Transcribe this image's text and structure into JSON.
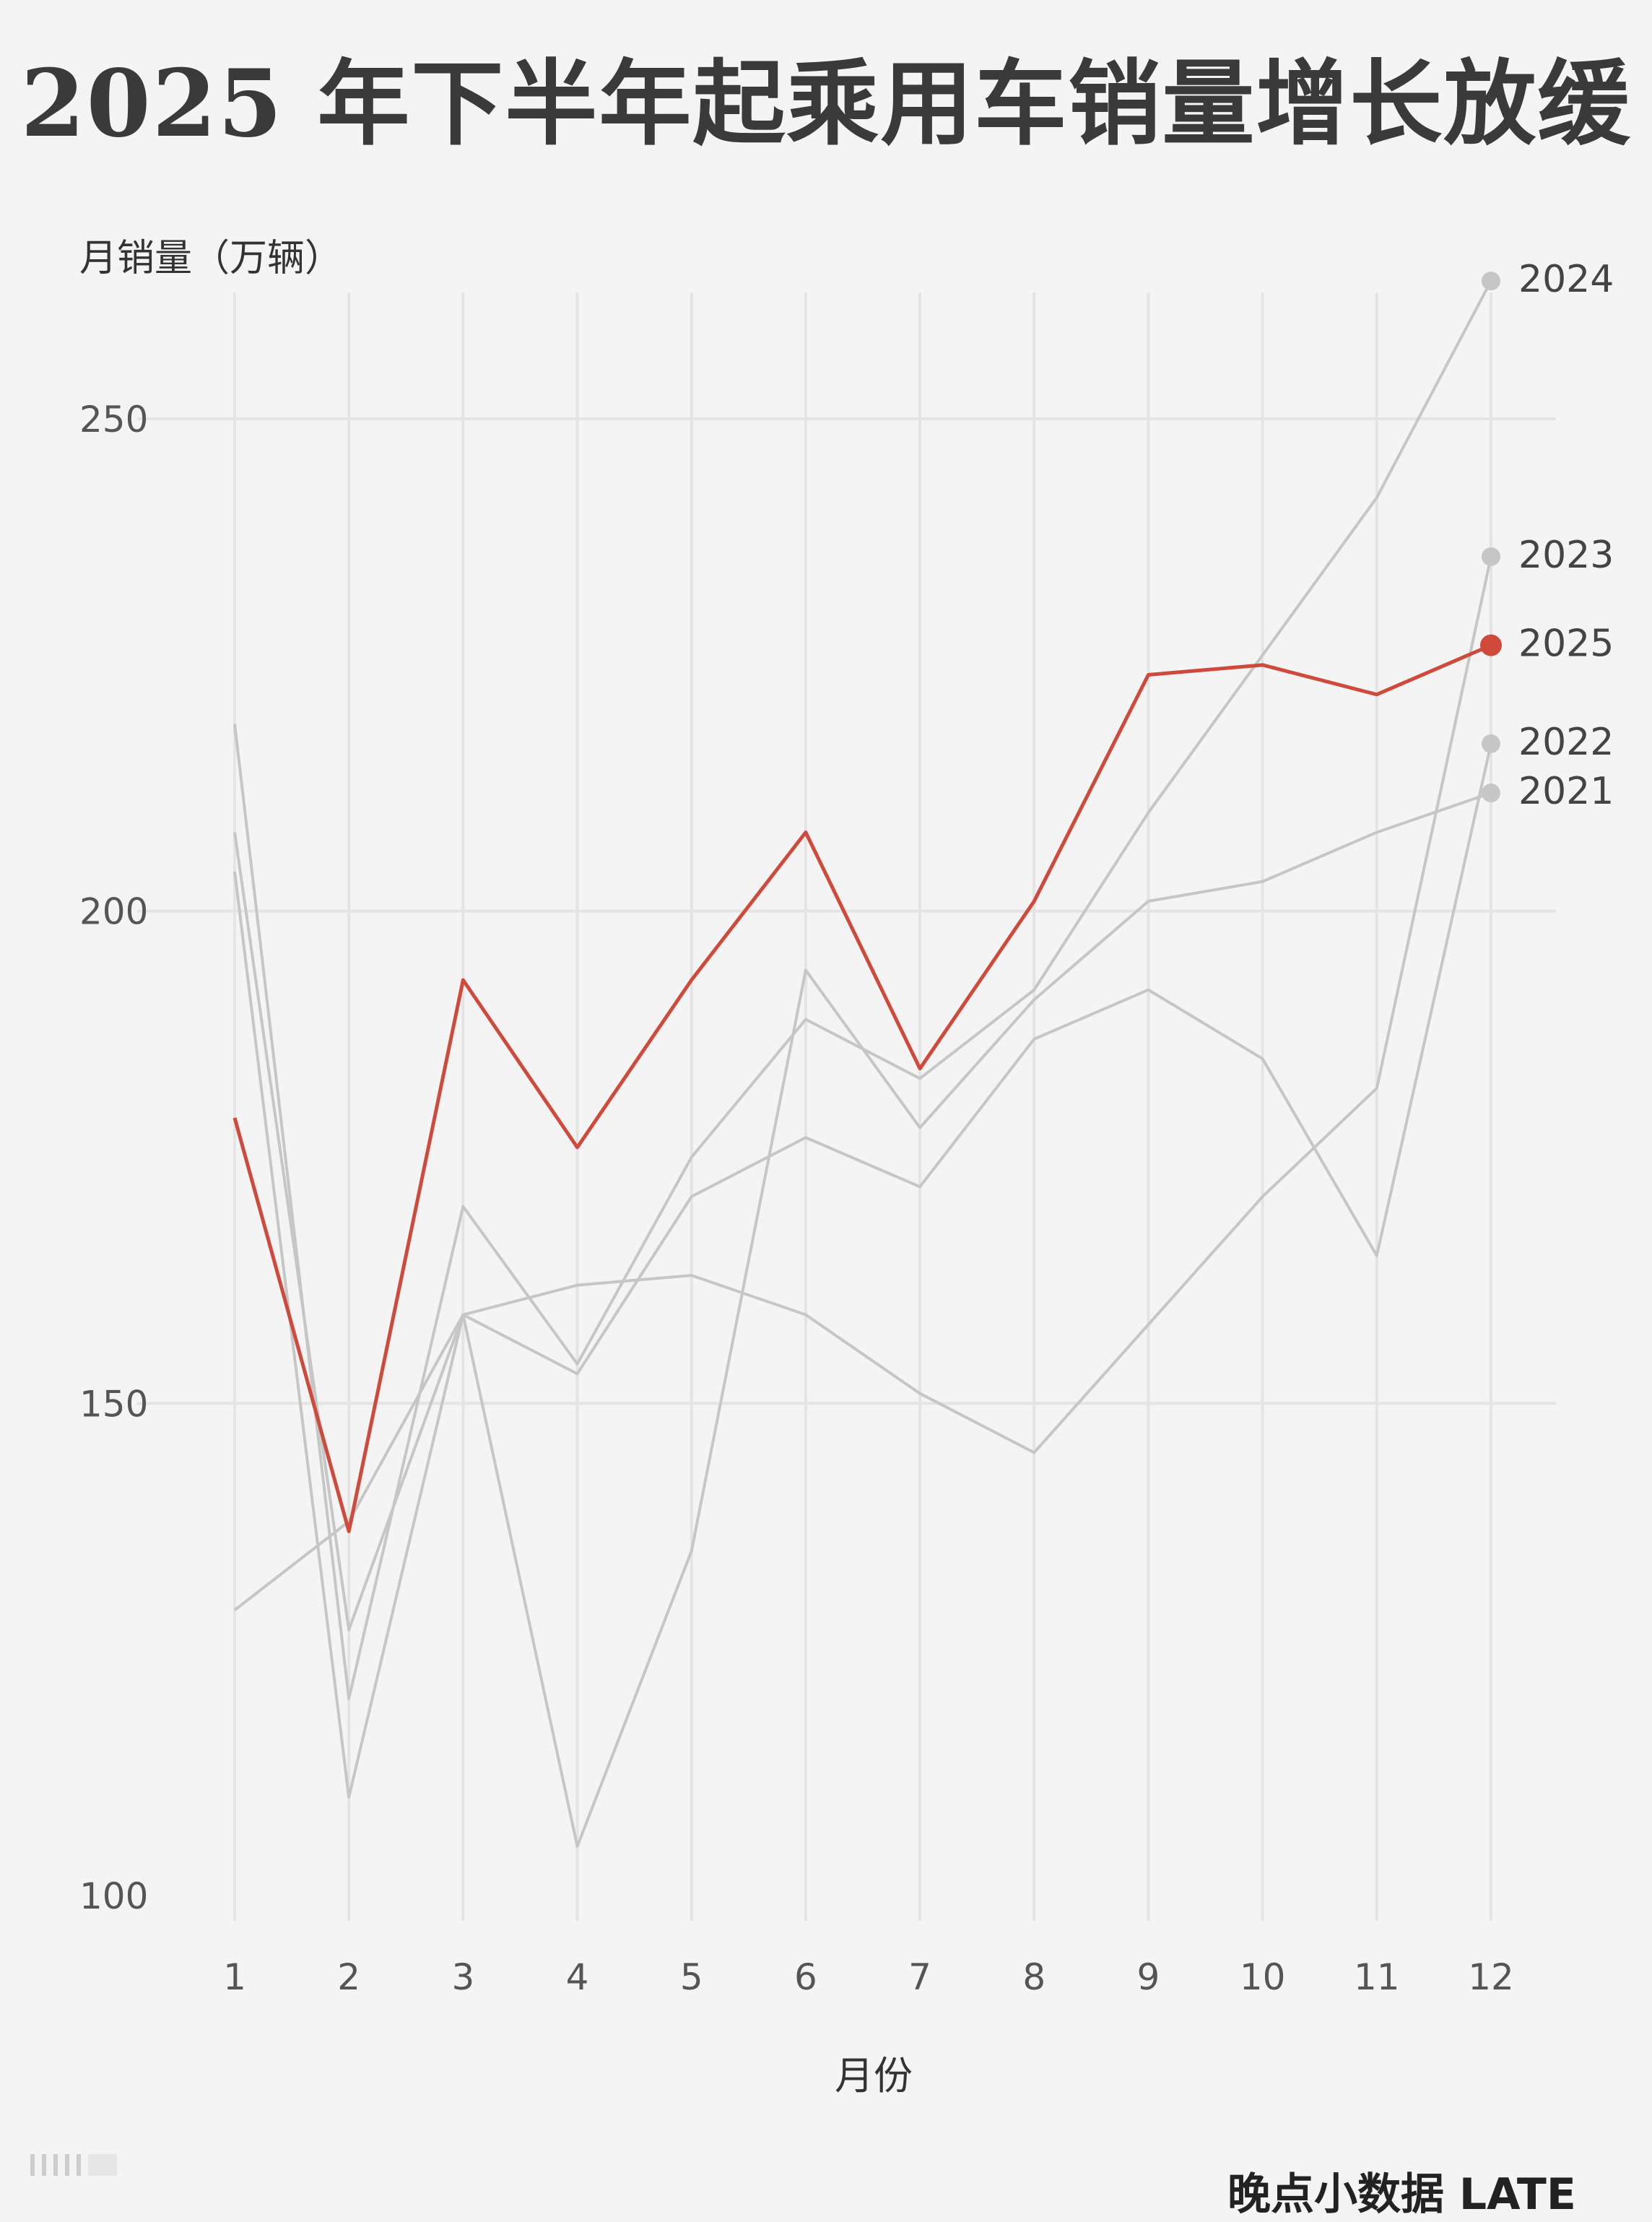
{
  "chart_data": {
    "type": "line",
    "title": "2025 年下半年起乘用车销量增长放缓",
    "ylabel": "月销量（万辆）",
    "xlabel": "月份",
    "x": [
      1,
      2,
      3,
      4,
      5,
      6,
      7,
      8,
      9,
      10,
      11,
      12
    ],
    "ylim": [
      100,
      260
    ],
    "yticks": [
      100,
      150,
      200,
      250
    ],
    "grid": true,
    "series": [
      {
        "name": "2021",
        "values": [
          204,
          110,
          159,
          105,
          135,
          194,
          178,
          191,
          201,
          203,
          208,
          212
        ],
        "color": "#c6c6c6"
      },
      {
        "name": "2022",
        "values": [
          208,
          127,
          159,
          153,
          171,
          177,
          172,
          187,
          192,
          185,
          165,
          217
        ],
        "color": "#c6c6c6"
      },
      {
        "name": "2023",
        "values": [
          129,
          138,
          159,
          162,
          163,
          159,
          151,
          145,
          158,
          171,
          182,
          236
        ],
        "color": "#c6c6c6"
      },
      {
        "name": "2024",
        "values": [
          219,
          120,
          170,
          154,
          175,
          189,
          183,
          192,
          210,
          226,
          242,
          264
        ],
        "color": "#c6c6c6"
      },
      {
        "name": "2025",
        "values": [
          179,
          137,
          193,
          176,
          193,
          208,
          184,
          201,
          224,
          225,
          222,
          227
        ],
        "color": "#d04a3b"
      }
    ]
  },
  "footer": {
    "brand": "晚点小数据 LATE"
  }
}
